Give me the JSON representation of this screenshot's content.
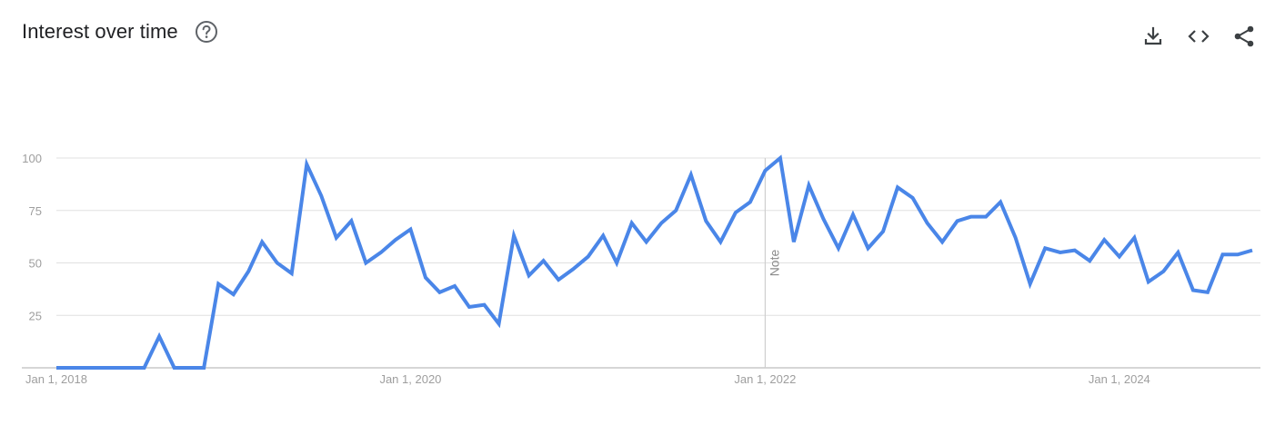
{
  "header": {
    "title": "Interest over time",
    "help_icon": "help-circle-icon"
  },
  "actions": {
    "download_icon": "download-icon",
    "embed_icon": "embed-code-icon",
    "share_icon": "share-icon"
  },
  "colors": {
    "line": "#4a86e8",
    "grid": "#e0e0e0",
    "axis_text": "#9e9e9e",
    "title": "#202124",
    "icon": "#5f6368"
  },
  "chart_data": {
    "type": "line",
    "title": "Interest over time",
    "xlabel": "",
    "ylabel": "",
    "ylim": [
      0,
      100
    ],
    "y_ticks": [
      25,
      50,
      75,
      100
    ],
    "x_tick_labels": [
      {
        "date": "2018-01-01",
        "label": "Jan 1, 2018"
      },
      {
        "date": "2020-01-01",
        "label": "Jan 1, 2020"
      },
      {
        "date": "2022-01-01",
        "label": "Jan 1, 2022"
      },
      {
        "date": "2024-01-01",
        "label": "Jan 1, 2024"
      }
    ],
    "x_range": [
      "2018-01-01",
      "2024-10-01"
    ],
    "grid": true,
    "annotations": [
      {
        "date": "2022-01-01",
        "text": "Note"
      }
    ],
    "series": [
      {
        "points": [
          [
            "2018-01-01",
            0
          ],
          [
            "2018-02-01",
            0
          ],
          [
            "2018-03-01",
            0
          ],
          [
            "2018-04-01",
            0
          ],
          [
            "2018-05-01",
            0
          ],
          [
            "2018-06-01",
            0
          ],
          [
            "2018-07-01",
            0
          ],
          [
            "2018-08-01",
            15
          ],
          [
            "2018-09-01",
            0
          ],
          [
            "2018-10-01",
            0
          ],
          [
            "2018-11-01",
            0
          ],
          [
            "2018-12-01",
            40
          ],
          [
            "2019-01-01",
            35
          ],
          [
            "2019-02-01",
            46
          ],
          [
            "2019-03-01",
            60
          ],
          [
            "2019-04-01",
            50
          ],
          [
            "2019-05-01",
            45
          ],
          [
            "2019-06-01",
            97
          ],
          [
            "2019-07-01",
            82
          ],
          [
            "2019-08-01",
            62
          ],
          [
            "2019-09-01",
            70
          ],
          [
            "2019-10-01",
            50
          ],
          [
            "2019-11-01",
            55
          ],
          [
            "2019-12-01",
            61
          ],
          [
            "2020-01-01",
            66
          ],
          [
            "2020-02-01",
            43
          ],
          [
            "2020-03-01",
            36
          ],
          [
            "2020-04-01",
            39
          ],
          [
            "2020-05-01",
            29
          ],
          [
            "2020-06-01",
            30
          ],
          [
            "2020-07-01",
            21
          ],
          [
            "2020-08-01",
            63
          ],
          [
            "2020-09-01",
            44
          ],
          [
            "2020-10-01",
            51
          ],
          [
            "2020-11-01",
            42
          ],
          [
            "2020-12-01",
            47
          ],
          [
            "2021-01-01",
            53
          ],
          [
            "2021-02-01",
            63
          ],
          [
            "2021-03-01",
            50
          ],
          [
            "2021-04-01",
            69
          ],
          [
            "2021-05-01",
            60
          ],
          [
            "2021-06-01",
            69
          ],
          [
            "2021-07-01",
            75
          ],
          [
            "2021-08-01",
            92
          ],
          [
            "2021-09-01",
            70
          ],
          [
            "2021-10-01",
            60
          ],
          [
            "2021-11-01",
            74
          ],
          [
            "2021-12-01",
            79
          ],
          [
            "2022-01-01",
            94
          ],
          [
            "2022-02-01",
            100
          ],
          [
            "2022-03-01",
            60
          ],
          [
            "2022-04-01",
            87
          ],
          [
            "2022-05-01",
            71
          ],
          [
            "2022-06-01",
            57
          ],
          [
            "2022-07-01",
            73
          ],
          [
            "2022-08-01",
            57
          ],
          [
            "2022-09-01",
            65
          ],
          [
            "2022-10-01",
            86
          ],
          [
            "2022-11-01",
            81
          ],
          [
            "2022-12-01",
            69
          ],
          [
            "2023-01-01",
            60
          ],
          [
            "2023-02-01",
            70
          ],
          [
            "2023-03-01",
            72
          ],
          [
            "2023-04-01",
            72
          ],
          [
            "2023-05-01",
            79
          ],
          [
            "2023-06-01",
            62
          ],
          [
            "2023-07-01",
            40
          ],
          [
            "2023-08-01",
            57
          ],
          [
            "2023-09-01",
            55
          ],
          [
            "2023-10-01",
            56
          ],
          [
            "2023-11-01",
            51
          ],
          [
            "2023-12-01",
            61
          ],
          [
            "2024-01-01",
            53
          ],
          [
            "2024-02-01",
            62
          ],
          [
            "2024-03-01",
            41
          ],
          [
            "2024-04-01",
            46
          ],
          [
            "2024-05-01",
            55
          ],
          [
            "2024-06-01",
            37
          ],
          [
            "2024-07-01",
            36
          ],
          [
            "2024-08-01",
            54
          ],
          [
            "2024-09-01",
            54
          ],
          [
            "2024-10-01",
            56
          ]
        ]
      }
    ]
  }
}
